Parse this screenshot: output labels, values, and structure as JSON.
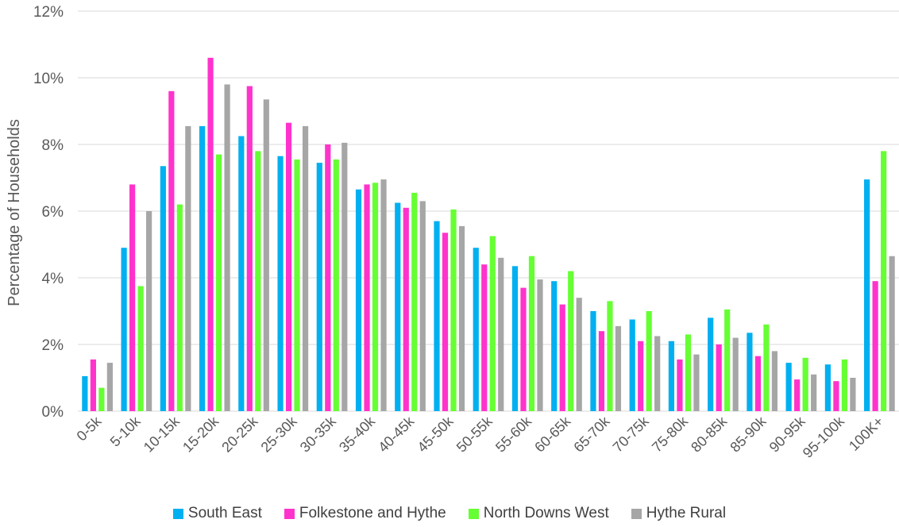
{
  "chart_data": {
    "type": "bar",
    "title": "",
    "xlabel": "",
    "ylabel": "Percentage of Households",
    "ylim": [
      0,
      12
    ],
    "yticks": [
      "0%",
      "2%",
      "4%",
      "6%",
      "8%",
      "10%",
      "12%"
    ],
    "grid": true,
    "legend_position": "bottom",
    "categories": [
      "0-5k",
      "5-10k",
      "10-15k",
      "15-20k",
      "20-25k",
      "25-30k",
      "30-35k",
      "35-40k",
      "40-45k",
      "45-50k",
      "50-55k",
      "55-60k",
      "60-65k",
      "65-70k",
      "70-75k",
      "75-80k",
      "80-85k",
      "85-90k",
      "90-95k",
      "95-100k",
      "100K+"
    ],
    "series": [
      {
        "name": "South East",
        "color": "#00b0f0",
        "values": [
          1.05,
          4.9,
          7.35,
          8.55,
          8.25,
          7.65,
          7.45,
          6.65,
          6.25,
          5.7,
          4.9,
          4.35,
          3.9,
          3.0,
          2.75,
          2.1,
          2.8,
          2.35,
          1.45,
          1.4,
          6.95
        ]
      },
      {
        "name": "Folkestone and Hythe",
        "color": "#ff33cc",
        "values": [
          1.55,
          6.8,
          9.6,
          10.6,
          9.75,
          8.65,
          8.0,
          6.8,
          6.1,
          5.35,
          4.4,
          3.7,
          3.2,
          2.4,
          2.1,
          1.55,
          2.0,
          1.65,
          0.95,
          0.9,
          3.9
        ]
      },
      {
        "name": "North Downs West",
        "color": "#66ff33",
        "values": [
          0.7,
          3.75,
          6.2,
          7.7,
          7.8,
          7.55,
          7.55,
          6.85,
          6.55,
          6.05,
          5.25,
          4.65,
          4.2,
          3.3,
          3.0,
          2.3,
          3.05,
          2.6,
          1.6,
          1.55,
          7.8
        ]
      },
      {
        "name": "Hythe Rural",
        "color": "#a6a6a6",
        "values": [
          1.45,
          6.0,
          8.55,
          9.8,
          9.35,
          8.55,
          8.05,
          6.95,
          6.3,
          5.55,
          4.6,
          3.95,
          3.4,
          2.55,
          2.25,
          1.7,
          2.2,
          1.8,
          1.1,
          1.0,
          4.65
        ]
      }
    ]
  }
}
